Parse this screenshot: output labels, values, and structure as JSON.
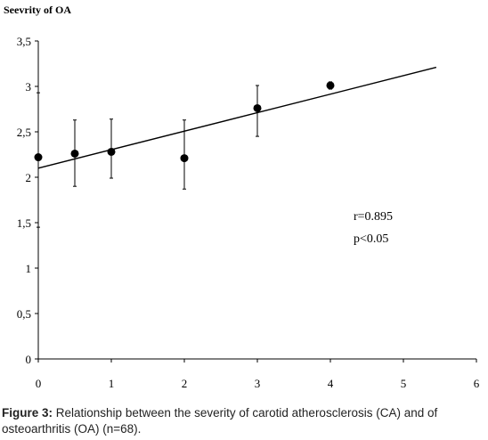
{
  "chart_data": {
    "type": "scatter",
    "ylabel": "Seevrity of OA",
    "xlabel": "",
    "xlim": [
      0,
      6
    ],
    "ylim": [
      0,
      3.5
    ],
    "x_ticks": [
      "0",
      "1",
      "2",
      "3",
      "4",
      "5",
      "6"
    ],
    "y_ticks": [
      "0",
      "0,5",
      "1",
      "1,5",
      "2",
      "2,5",
      "3",
      "3,5"
    ],
    "points": [
      {
        "x": 0,
        "y": 2.22,
        "err_low": 1.45,
        "err_high": 2.93
      },
      {
        "x": 0.5,
        "y": 2.26,
        "err_low": 1.9,
        "err_high": 2.63
      },
      {
        "x": 1,
        "y": 2.28,
        "err_low": 1.99,
        "err_high": 2.64
      },
      {
        "x": 2,
        "y": 2.21,
        "err_low": 1.87,
        "err_high": 2.63
      },
      {
        "x": 3,
        "y": 2.76,
        "err_low": 2.45,
        "err_high": 3.01
      },
      {
        "x": 4,
        "y": 3.01,
        "err_low": 2.97,
        "err_high": 3.05
      }
    ],
    "trendline": {
      "x": [
        0,
        5.45
      ],
      "y": [
        2.1,
        3.21
      ]
    },
    "annotations": [
      "r=0.895",
      "p<0.05"
    ],
    "grid": false
  },
  "caption": {
    "label": "Figure 3:",
    "text": " Relationship between the severity of carotid atherosclerosis (CA) and of osteoarthritis (OA) (n=68)."
  }
}
